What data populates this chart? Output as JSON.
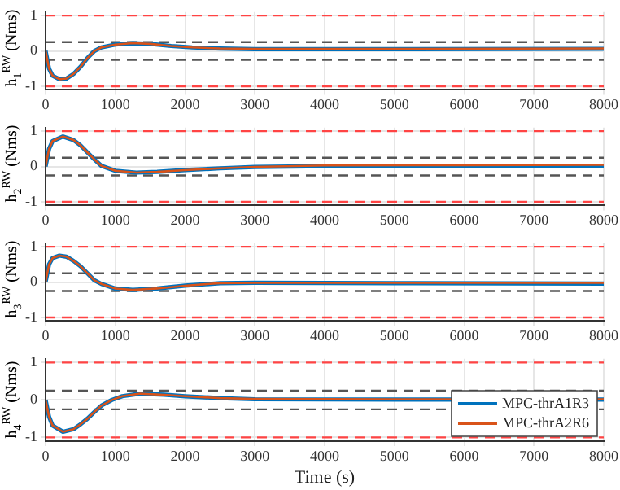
{
  "chart_data": [
    {
      "type": "line",
      "ylabel": "h$_{1}$$^{RW}$ (Nms)",
      "xlim": [
        0,
        8000
      ],
      "xticks": [
        0,
        1000,
        2000,
        3000,
        4000,
        5000,
        6000,
        7000,
        8000
      ],
      "ylim": [
        -1.1,
        1.1
      ],
      "yticks": [
        -1,
        0,
        1
      ],
      "grid": true,
      "marker": "none",
      "line_style": "solid",
      "ref_lines": [
        {
          "axis": "y",
          "value": 1,
          "color": "#ff4444",
          "line_style": "dashed"
        },
        {
          "axis": "y",
          "value": -1,
          "color": "#ff4444",
          "line_style": "dashed"
        },
        {
          "axis": "y",
          "value": 0.25,
          "color": "#555555",
          "line_style": "dashed"
        },
        {
          "axis": "y",
          "value": -0.25,
          "color": "#555555",
          "line_style": "dashed"
        }
      ],
      "x": [
        0,
        50,
        100,
        200,
        300,
        400,
        500,
        600,
        700,
        800,
        1000,
        1250,
        1500,
        1800,
        2100,
        2500,
        3000,
        5000,
        8000
      ],
      "series": [
        {
          "color": "#0072bd",
          "values": [
            0,
            -0.5,
            -0.7,
            -0.8,
            -0.78,
            -0.65,
            -0.45,
            -0.2,
            0,
            0.1,
            0.18,
            0.22,
            0.2,
            0.14,
            0.1,
            0.07,
            0.05,
            0.05,
            0.06
          ]
        },
        {
          "color": "#d95319",
          "values": [
            0,
            -0.5,
            -0.7,
            -0.8,
            -0.78,
            -0.65,
            -0.45,
            -0.2,
            0,
            0.1,
            0.18,
            0.22,
            0.2,
            0.14,
            0.1,
            0.07,
            0.06,
            0.06,
            0.07
          ]
        }
      ]
    },
    {
      "type": "line",
      "ylabel": "h$_{2}$$^{RW}$ (Nms)",
      "xlim": [
        0,
        8000
      ],
      "xticks": [
        0,
        1000,
        2000,
        3000,
        4000,
        5000,
        6000,
        7000,
        8000
      ],
      "ylim": [
        -1.1,
        1.1
      ],
      "yticks": [
        -1,
        0,
        1
      ],
      "grid": true,
      "marker": "none",
      "line_style": "solid",
      "ref_lines": [
        {
          "axis": "y",
          "value": 1,
          "color": "#ff4444",
          "line_style": "dashed"
        },
        {
          "axis": "y",
          "value": -1,
          "color": "#ff4444",
          "line_style": "dashed"
        },
        {
          "axis": "y",
          "value": 0.25,
          "color": "#555555",
          "line_style": "dashed"
        },
        {
          "axis": "y",
          "value": -0.25,
          "color": "#555555",
          "line_style": "dashed"
        }
      ],
      "x": [
        0,
        50,
        100,
        250,
        400,
        500,
        600,
        700,
        800,
        1000,
        1300,
        1600,
        2000,
        2500,
        3000,
        4000,
        6000,
        8000
      ],
      "series": [
        {
          "color": "#0072bd",
          "values": [
            0,
            0.5,
            0.72,
            0.85,
            0.75,
            0.6,
            0.4,
            0.2,
            0.02,
            -0.12,
            -0.17,
            -0.15,
            -0.1,
            -0.05,
            -0.01,
            0.01,
            0.01,
            0.02
          ]
        },
        {
          "color": "#d95319",
          "values": [
            0,
            0.5,
            0.72,
            0.85,
            0.75,
            0.6,
            0.4,
            0.2,
            0.02,
            -0.12,
            -0.17,
            -0.15,
            -0.1,
            -0.05,
            -0.01,
            0.03,
            0.04,
            0.05
          ]
        }
      ]
    },
    {
      "type": "line",
      "ylabel": "h$_{3}$$^{RW}$ (Nms)",
      "xlim": [
        0,
        8000
      ],
      "xticks": [
        0,
        1000,
        2000,
        3000,
        4000,
        5000,
        6000,
        7000,
        8000
      ],
      "ylim": [
        -1.1,
        1.1
      ],
      "yticks": [
        -1,
        0,
        1
      ],
      "grid": true,
      "marker": "none",
      "line_style": "solid",
      "ref_lines": [
        {
          "axis": "y",
          "value": 1,
          "color": "#ff4444",
          "line_style": "dashed"
        },
        {
          "axis": "y",
          "value": -1,
          "color": "#ff4444",
          "line_style": "dashed"
        },
        {
          "axis": "y",
          "value": 0.25,
          "color": "#555555",
          "line_style": "dashed"
        },
        {
          "axis": "y",
          "value": -0.25,
          "color": "#555555",
          "line_style": "dashed"
        }
      ],
      "x": [
        0,
        50,
        100,
        200,
        300,
        400,
        500,
        600,
        700,
        800,
        1000,
        1250,
        1600,
        2000,
        2500,
        3000,
        5000,
        8000
      ],
      "series": [
        {
          "color": "#0072bd",
          "values": [
            0,
            0.5,
            0.68,
            0.75,
            0.72,
            0.6,
            0.45,
            0.25,
            0.05,
            -0.05,
            -0.18,
            -0.22,
            -0.18,
            -0.1,
            -0.03,
            -0.02,
            -0.03,
            -0.04
          ]
        },
        {
          "color": "#d95319",
          "values": [
            0,
            0.5,
            0.68,
            0.75,
            0.72,
            0.6,
            0.45,
            0.25,
            0.05,
            -0.05,
            -0.18,
            -0.22,
            -0.18,
            -0.1,
            -0.03,
            -0.02,
            -0.02,
            -0.02
          ]
        }
      ]
    },
    {
      "type": "line",
      "ylabel": "h$_{4}$$^{RW}$ (Nms)",
      "xlabel": "Time (s)",
      "xlim": [
        0,
        8000
      ],
      "xticks": [
        0,
        1000,
        2000,
        3000,
        4000,
        5000,
        6000,
        7000,
        8000
      ],
      "ylim": [
        -1.1,
        1.1
      ],
      "yticks": [
        -1,
        0,
        1
      ],
      "grid": true,
      "marker": "none",
      "line_style": "solid",
      "legend": "bottom right",
      "ref_lines": [
        {
          "axis": "y",
          "value": 1,
          "color": "#ff4444",
          "line_style": "dashed"
        },
        {
          "axis": "y",
          "value": -1,
          "color": "#ff4444",
          "line_style": "dashed"
        },
        {
          "axis": "y",
          "value": 0.25,
          "color": "#555555",
          "line_style": "dashed"
        },
        {
          "axis": "y",
          "value": -0.25,
          "color": "#555555",
          "line_style": "dashed"
        }
      ],
      "x": [
        0,
        50,
        100,
        250,
        400,
        500,
        600,
        700,
        800,
        950,
        1100,
        1350,
        1700,
        2000,
        2500,
        3000,
        5000,
        8000
      ],
      "series": [
        {
          "name": "MPC-thrA1R3",
          "color": "#0072bd",
          "values": [
            0,
            -0.45,
            -0.68,
            -0.85,
            -0.78,
            -0.65,
            -0.5,
            -0.32,
            -0.15,
            0,
            0.1,
            0.17,
            0.14,
            0.1,
            0.05,
            0.02,
            0.01,
            0.01
          ]
        },
        {
          "name": "MPC-thrA2R6",
          "color": "#d95319",
          "values": [
            0,
            -0.45,
            -0.68,
            -0.85,
            -0.78,
            -0.65,
            -0.5,
            -0.32,
            -0.15,
            0,
            0.1,
            0.17,
            0.14,
            0.1,
            0.05,
            0.03,
            0.02,
            0.02
          ]
        }
      ]
    }
  ]
}
